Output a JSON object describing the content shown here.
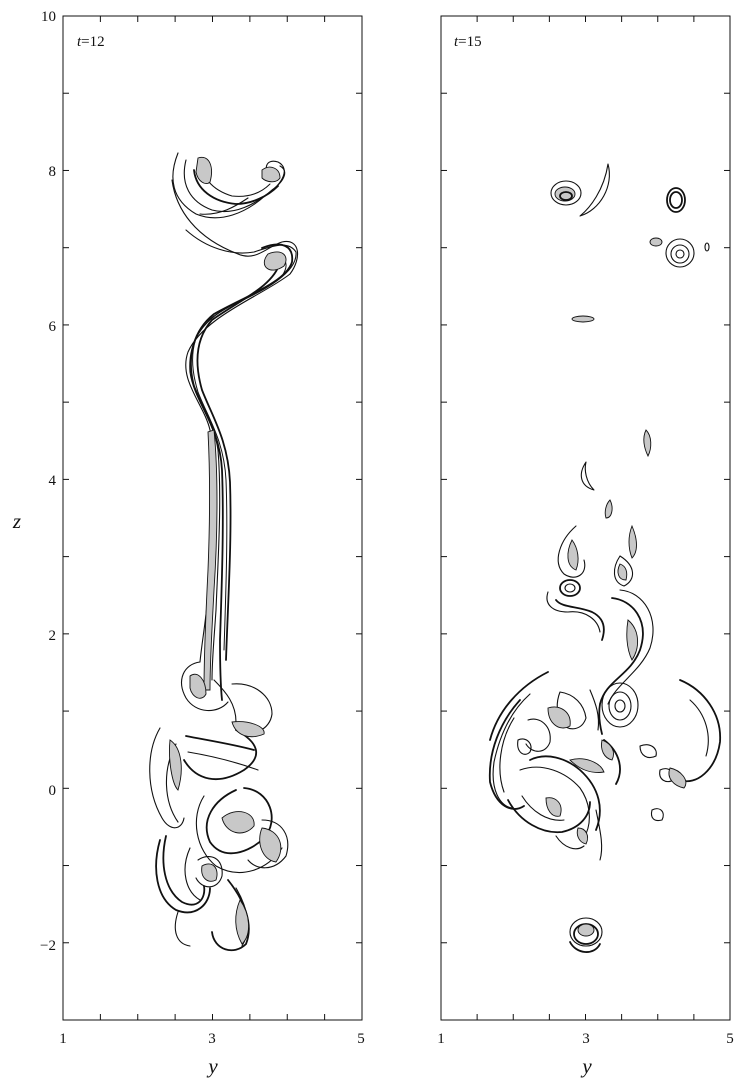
{
  "figure": {
    "type": "contour",
    "panels": [
      {
        "label_var": "t",
        "label_value": "=12",
        "xlabel": "y",
        "ylabel": "z",
        "xlim": [
          1,
          5
        ],
        "ylim": [
          -3,
          10
        ],
        "x_tick_labels": [
          "1",
          "3",
          "5"
        ],
        "y_tick_labels": [
          "−2",
          "0",
          "2",
          "4",
          "6",
          "8",
          "10"
        ]
      },
      {
        "label_var": "t",
        "label_value": "=15",
        "xlabel": "y",
        "ylabel": "",
        "xlim": [
          1,
          5
        ],
        "ylim": [
          -3,
          10
        ],
        "x_tick_labels": [
          "1",
          "3",
          "5"
        ],
        "y_tick_labels": []
      }
    ]
  },
  "chart_data": [
    {
      "type": "contour",
      "title": "t = 12",
      "xlabel": "y",
      "ylabel": "z",
      "xlim": [
        1,
        5
      ],
      "ylim": [
        -3,
        10
      ],
      "x_ticks": [
        1,
        1.5,
        2,
        2.5,
        3,
        3.5,
        4,
        4.5,
        5
      ],
      "x_tick_labels": [
        1,
        3,
        5
      ],
      "y_ticks": [
        -3,
        -2,
        -1,
        0,
        1,
        2,
        3,
        4,
        5,
        6,
        7,
        8,
        9,
        10
      ],
      "y_tick_labels": [
        -2,
        0,
        2,
        4,
        6,
        8,
        10
      ],
      "features": [
        {
          "name": "stem",
          "points": [
            [
              2.4,
              8.25
            ],
            [
              2.75,
              7.6
            ],
            [
              3.3,
              7.1
            ],
            [
              3.9,
              7.1
            ],
            [
              4.0,
              6.9
            ],
            [
              3.4,
              6.3
            ],
            [
              2.95,
              5.6
            ],
            [
              3.3,
              4.6
            ],
            [
              3.25,
              3.5
            ],
            [
              3.05,
              2.0
            ],
            [
              3.15,
              1.2
            ]
          ]
        },
        {
          "name": "top-cap",
          "points": [
            [
              2.6,
              8.1
            ],
            [
              3.0,
              7.55
            ],
            [
              3.6,
              7.7
            ],
            [
              3.95,
              7.9
            ],
            [
              3.75,
              8.05
            ]
          ]
        },
        {
          "name": "lower-lobe-left",
          "points": [
            [
              2.4,
              0.6
            ],
            [
              2.3,
              0.0
            ],
            [
              2.5,
              -0.5
            ],
            [
              2.3,
              -1.0
            ],
            [
              2.7,
              -1.4
            ],
            [
              2.9,
              -1.2
            ]
          ]
        },
        {
          "name": "lower-lobe-right",
          "points": [
            [
              2.8,
              -0.2
            ],
            [
              3.4,
              -0.6
            ],
            [
              3.7,
              -1.3
            ],
            [
              3.3,
              -1.9
            ],
            [
              3.1,
              -1.5
            ]
          ]
        }
      ]
    },
    {
      "type": "contour",
      "title": "t = 15",
      "xlabel": "y",
      "ylabel": "",
      "xlim": [
        1,
        5
      ],
      "ylim": [
        -3,
        10
      ],
      "x_ticks": [
        1,
        1.5,
        2,
        2.5,
        3,
        3.5,
        4,
        4.5,
        5
      ],
      "x_tick_labels": [
        1,
        3,
        5
      ],
      "y_ticks": [
        -3,
        -2,
        -1,
        0,
        1,
        2,
        3,
        4,
        5,
        6,
        7,
        8,
        9,
        10
      ],
      "features": [
        {
          "name": "eddy-top-left",
          "center": [
            2.55,
            7.7
          ]
        },
        {
          "name": "eddy-top-right",
          "center": [
            4.15,
            7.6
          ]
        },
        {
          "name": "eddy-mid-right",
          "center": [
            4.15,
            6.9
          ]
        },
        {
          "name": "eddy-lower-center",
          "center": [
            3.15,
            1.5
          ]
        },
        {
          "name": "eddy-bottom",
          "center": [
            3.35,
            -0.9
          ]
        }
      ]
    }
  ]
}
